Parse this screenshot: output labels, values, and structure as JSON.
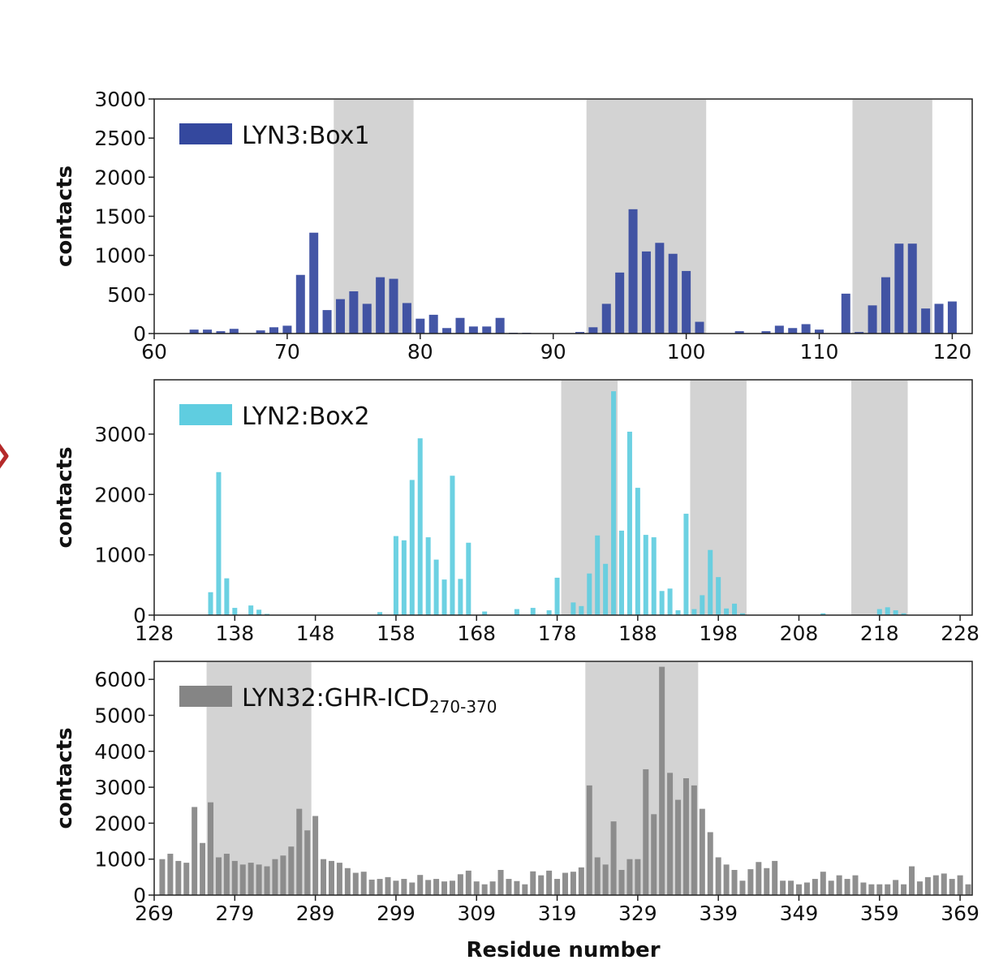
{
  "chart_data": [
    {
      "type": "bar",
      "legend": "LYN3:Box1",
      "color": "#34489e",
      "shade_color": "#d3d3d3",
      "ylabel": "contacts",
      "xlabel": "",
      "xlim": [
        60,
        121.5
      ],
      "ylim": [
        0,
        3000
      ],
      "xticks": [
        60,
        70,
        80,
        90,
        100,
        110,
        120
      ],
      "yticks": [
        0,
        500,
        1000,
        1500,
        2000,
        2500,
        3000
      ],
      "shaded_ranges": [
        [
          73.5,
          79.5
        ],
        [
          92.5,
          101.5
        ],
        [
          112.5,
          118.5
        ]
      ],
      "x": [
        62,
        63,
        64,
        65,
        66,
        67,
        68,
        69,
        70,
        71,
        72,
        73,
        74,
        75,
        76,
        77,
        78,
        79,
        80,
        81,
        82,
        83,
        84,
        85,
        86,
        87,
        88,
        89,
        90,
        91,
        92,
        93,
        94,
        95,
        96,
        97,
        98,
        99,
        100,
        101,
        102,
        103,
        104,
        105,
        106,
        107,
        108,
        109,
        110,
        111,
        112,
        113,
        114,
        115,
        116,
        117,
        118,
        119,
        120
      ],
      "values": [
        0,
        50,
        50,
        30,
        60,
        0,
        40,
        80,
        100,
        750,
        1290,
        300,
        440,
        540,
        380,
        720,
        700,
        390,
        190,
        240,
        70,
        200,
        90,
        90,
        200,
        10,
        10,
        0,
        0,
        0,
        20,
        80,
        380,
        780,
        1590,
        1050,
        1160,
        1020,
        800,
        150,
        0,
        0,
        30,
        0,
        30,
        100,
        70,
        120,
        50,
        0,
        510,
        20,
        360,
        720,
        1150,
        1150,
        320,
        380,
        410
      ]
    },
    {
      "type": "bar",
      "legend": "LYN2:Box2",
      "color": "#5fcde0",
      "shade_color": "#d3d3d3",
      "ylabel": "contacts",
      "xlabel": "",
      "xlim": [
        128,
        229.5
      ],
      "ylim": [
        0,
        3900
      ],
      "xticks": [
        128,
        138,
        148,
        158,
        168,
        178,
        188,
        198,
        208,
        218,
        228
      ],
      "yticks": [
        0,
        1000,
        2000,
        3000
      ],
      "shaded_ranges": [
        [
          178.5,
          185.5
        ],
        [
          194.5,
          201.5
        ],
        [
          214.5,
          221.5
        ]
      ],
      "x": [
        132,
        133,
        134,
        135,
        136,
        137,
        138,
        139,
        140,
        141,
        142,
        143,
        144,
        145,
        146,
        147,
        148,
        149,
        150,
        151,
        152,
        153,
        154,
        155,
        156,
        157,
        158,
        159,
        160,
        161,
        162,
        163,
        164,
        165,
        166,
        167,
        168,
        169,
        170,
        171,
        172,
        173,
        174,
        175,
        176,
        177,
        178,
        179,
        180,
        181,
        182,
        183,
        184,
        185,
        186,
        187,
        188,
        189,
        190,
        191,
        192,
        193,
        194,
        195,
        196,
        197,
        198,
        199,
        200,
        201,
        202,
        203,
        204,
        205,
        206,
        207,
        208,
        209,
        210,
        211,
        212,
        213,
        214,
        215,
        216,
        217,
        218,
        219,
        220,
        221,
        222,
        223,
        224,
        225,
        226,
        227
      ],
      "values": [
        0,
        0,
        0,
        380,
        2370,
        610,
        120,
        0,
        160,
        90,
        20,
        0,
        0,
        0,
        0,
        0,
        0,
        0,
        0,
        0,
        0,
        0,
        0,
        0,
        50,
        0,
        1310,
        1240,
        2240,
        2930,
        1290,
        920,
        590,
        2310,
        600,
        1200,
        0,
        60,
        0,
        0,
        0,
        100,
        0,
        120,
        0,
        80,
        620,
        0,
        210,
        150,
        690,
        1320,
        850,
        3710,
        1400,
        3040,
        2110,
        1330,
        1290,
        400,
        440,
        80,
        1680,
        100,
        330,
        1080,
        630,
        110,
        190,
        30,
        0,
        0,
        0,
        0,
        0,
        0,
        0,
        0,
        0,
        30,
        0,
        0,
        0,
        0,
        0,
        0,
        100,
        130,
        80,
        30,
        0,
        0,
        0,
        0,
        0,
        0
      ]
    },
    {
      "type": "bar",
      "legend": "LYN32:GHR-ICD",
      "legend_subscript": "270-370",
      "color": "#858585",
      "shade_color": "#d3d3d3",
      "ylabel": "contacts",
      "xlabel": "Residue number",
      "xlim": [
        269,
        370.5
      ],
      "ylim": [
        0,
        6500
      ],
      "xticks": [
        269,
        279,
        289,
        299,
        309,
        319,
        329,
        339,
        349,
        359,
        369
      ],
      "yticks": [
        0,
        1000,
        2000,
        3000,
        4000,
        5000,
        6000
      ],
      "shaded_ranges": [
        [
          275.5,
          288.5
        ],
        [
          322.5,
          336.5
        ]
      ],
      "x": [
        270,
        271,
        272,
        273,
        274,
        275,
        276,
        277,
        278,
        279,
        280,
        281,
        282,
        283,
        284,
        285,
        286,
        287,
        288,
        289,
        290,
        291,
        292,
        293,
        294,
        295,
        296,
        297,
        298,
        299,
        300,
        301,
        302,
        303,
        304,
        305,
        306,
        307,
        308,
        309,
        310,
        311,
        312,
        313,
        314,
        315,
        316,
        317,
        318,
        319,
        320,
        321,
        322,
        323,
        324,
        325,
        326,
        327,
        328,
        329,
        330,
        331,
        332,
        333,
        334,
        335,
        336,
        337,
        338,
        339,
        340,
        341,
        342,
        343,
        344,
        345,
        346,
        347,
        348,
        349,
        350,
        351,
        352,
        353,
        354,
        355,
        356,
        357,
        358,
        359,
        360,
        361,
        362,
        363,
        364,
        365,
        366,
        367,
        368,
        369,
        370
      ],
      "values": [
        1000,
        1150,
        950,
        900,
        2450,
        1450,
        2580,
        1050,
        1150,
        950,
        850,
        900,
        850,
        800,
        1000,
        1100,
        1350,
        2400,
        1800,
        2200,
        1000,
        950,
        900,
        750,
        620,
        650,
        430,
        450,
        500,
        400,
        450,
        350,
        560,
        420,
        450,
        380,
        400,
        580,
        680,
        380,
        300,
        380,
        700,
        450,
        390,
        300,
        660,
        550,
        680,
        450,
        620,
        650,
        770,
        3050,
        1050,
        850,
        2050,
        700,
        1000,
        1000,
        3500,
        2250,
        6350,
        3400,
        2650,
        3250,
        3050,
        2400,
        1750,
        1050,
        850,
        700,
        400,
        720,
        920,
        750,
        950,
        400,
        400,
        300,
        350,
        450,
        650,
        400,
        550,
        450,
        550,
        350,
        300,
        300,
        300,
        420,
        300,
        800,
        380,
        500,
        550,
        600,
        450,
        550,
        300
      ]
    }
  ]
}
